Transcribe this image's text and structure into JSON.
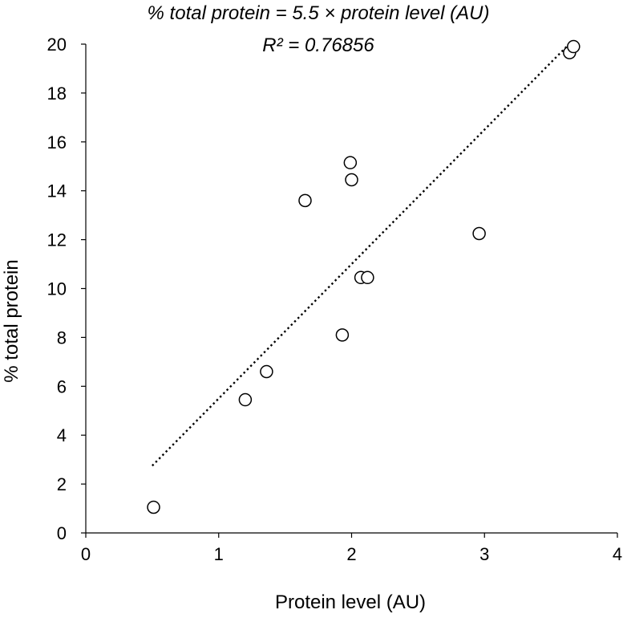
{
  "chart_data": {
    "type": "scatter",
    "title": "",
    "xlabel": "Protein level (AU)",
    "ylabel": "% total protein",
    "xlim": [
      0,
      4
    ],
    "ylim": [
      0,
      20
    ],
    "xticks": [
      0,
      1,
      2,
      3,
      4
    ],
    "yticks": [
      0,
      2,
      4,
      6,
      8,
      10,
      12,
      14,
      16,
      18,
      20
    ],
    "grid": false,
    "legend": "none",
    "annotations": {
      "equation": "% total protein = 5.5 × protein level (AU)",
      "r_squared": "R² = 0.76856"
    },
    "trendline": {
      "slope": 5.5,
      "intercept": 0,
      "x_range": [
        0.5,
        3.62
      ],
      "style": "dotted"
    },
    "marker_color": "#000000",
    "series": [
      {
        "points": [
          {
            "x": 0.51,
            "y": 1.05
          },
          {
            "x": 1.2,
            "y": 5.45
          },
          {
            "x": 1.36,
            "y": 6.6
          },
          {
            "x": 1.65,
            "y": 13.6
          },
          {
            "x": 1.93,
            "y": 8.1
          },
          {
            "x": 1.99,
            "y": 15.15
          },
          {
            "x": 2.0,
            "y": 14.45
          },
          {
            "x": 2.07,
            "y": 10.45
          },
          {
            "x": 2.12,
            "y": 10.45
          },
          {
            "x": 2.96,
            "y": 12.25
          },
          {
            "x": 3.64,
            "y": 19.65
          },
          {
            "x": 3.67,
            "y": 19.9
          }
        ]
      }
    ]
  }
}
